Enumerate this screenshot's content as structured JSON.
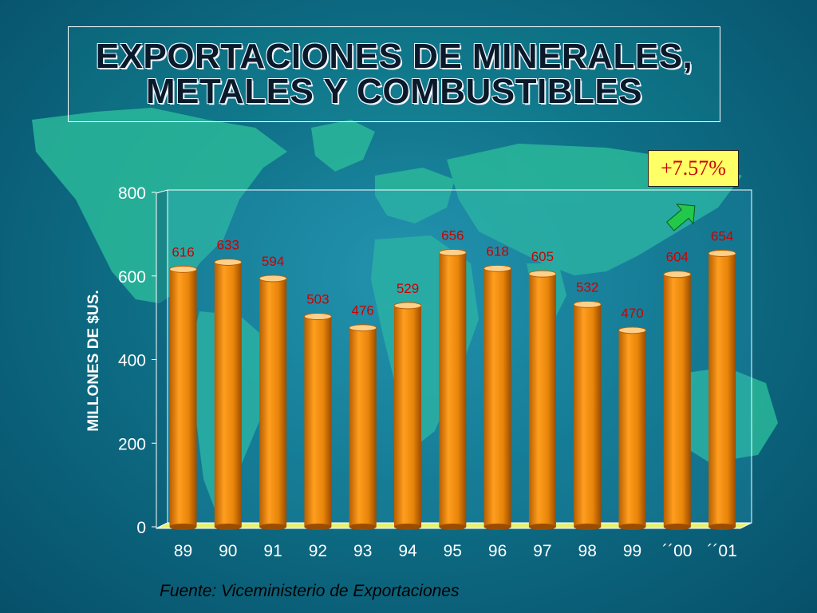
{
  "title": {
    "line1": "EXPORTACIONES DE MINERALES,",
    "line2": "METALES Y COMBUSTIBLES"
  },
  "badge": "+7.57%",
  "source": "Fuente: Viceministerio de Exportaciones",
  "colors": {
    "bar": "#e8850a",
    "floor": "#e8f070",
    "label": "#cc0000",
    "arrow": "#22c84a"
  },
  "chart_data": {
    "type": "bar",
    "categories": [
      "89",
      "90",
      "91",
      "92",
      "93",
      "94",
      "95",
      "96",
      "97",
      "98",
      "99",
      "´´00",
      "´´01"
    ],
    "values": [
      616,
      633,
      594,
      503,
      476,
      529,
      656,
      618,
      605,
      532,
      470,
      604,
      654
    ],
    "data_labels": [
      "616",
      "633",
      "594",
      "503",
      "476",
      "529",
      "656",
      "618",
      "605",
      "532",
      "470",
      "604",
      "654"
    ],
    "ylabel": "MILLONES DE $US.",
    "ylim": [
      0,
      800
    ],
    "yticks": [
      "0",
      "200",
      "400",
      "600",
      "800"
    ],
    "grid": false,
    "legend": "none"
  }
}
